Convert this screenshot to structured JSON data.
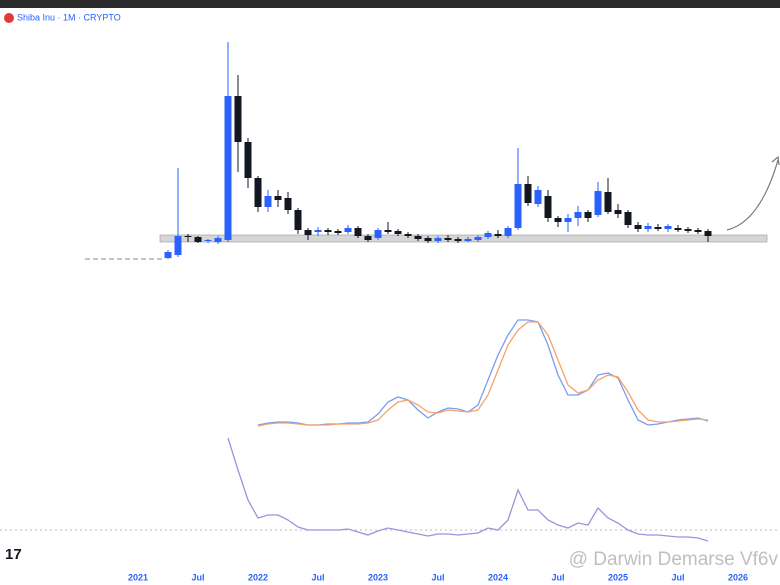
{
  "title": "Shiba Inu · 1M · CRYPTO",
  "watermark": "@ Darwin Demarse Vf6v",
  "chart_data": [
    {
      "type": "candlestick",
      "up_color": "#2962ff",
      "down_color": "#131722",
      "xlim": [
        -13.8,
        64.2
      ],
      "ylim": [
        0,
        220
      ],
      "xticks": [
        {
          "value": 0,
          "label": "2021"
        },
        {
          "value": 6,
          "label": "Jul"
        },
        {
          "value": 12,
          "label": "2022"
        },
        {
          "value": 18,
          "label": "Jul"
        },
        {
          "value": 24,
          "label": "2023"
        },
        {
          "value": 30,
          "label": "Jul"
        },
        {
          "value": 36,
          "label": "2024"
        },
        {
          "value": 42,
          "label": "Jul"
        },
        {
          "value": 48,
          "label": "2025"
        },
        {
          "value": 54,
          "label": "Jul"
        },
        {
          "value": 60,
          "label": "2026"
        }
      ],
      "x": [
        3,
        4,
        5,
        6,
        7,
        8,
        9,
        10,
        11,
        12,
        13,
        14,
        15,
        16,
        17,
        18,
        19,
        20,
        21,
        22,
        23,
        24,
        25,
        26,
        27,
        28,
        29,
        30,
        31,
        32,
        33,
        34,
        35,
        36,
        37,
        38,
        39,
        40,
        41,
        42,
        43,
        44,
        45,
        46,
        47,
        48,
        49,
        50,
        51,
        52,
        53,
        54,
        55,
        56,
        57
      ],
      "open": [
        4,
        7,
        26,
        25,
        21,
        20,
        22,
        166,
        120,
        84,
        55,
        66,
        64,
        52,
        32,
        30,
        32,
        31,
        30,
        34,
        26,
        24,
        32,
        31,
        28,
        26,
        24,
        21,
        24,
        23,
        21,
        22,
        25,
        28,
        26,
        34,
        78,
        58,
        66,
        44,
        40,
        44,
        50,
        47,
        70,
        52,
        50,
        37,
        33,
        35,
        33,
        34,
        33,
        32,
        31
      ],
      "high": [
        12,
        94,
        28,
        26,
        23,
        26,
        220,
        187,
        124,
        86,
        72,
        72,
        70,
        54,
        34,
        35,
        34,
        33,
        37,
        36,
        28,
        34,
        40,
        33,
        30,
        28,
        26,
        26,
        27,
        25,
        25,
        27,
        31,
        32,
        36,
        114,
        86,
        76,
        72,
        46,
        48,
        56,
        52,
        80,
        84,
        58,
        52,
        40,
        39,
        38,
        38,
        37,
        35,
        34,
        33
      ],
      "low": [
        3,
        5,
        20,
        19,
        19,
        18,
        20,
        90,
        74,
        50,
        50,
        55,
        48,
        28,
        22,
        26,
        27,
        27,
        28,
        24,
        20,
        22,
        28,
        26,
        24,
        21,
        19,
        19,
        20,
        19,
        20,
        20,
        23,
        24,
        24,
        32,
        56,
        55,
        40,
        35,
        30,
        36,
        40,
        45,
        48,
        44,
        34,
        30,
        30,
        31,
        30,
        30,
        29,
        28,
        20
      ],
      "close": [
        10,
        26,
        25,
        20,
        22,
        24,
        166,
        120,
        84,
        55,
        66,
        62,
        52,
        32,
        27,
        32,
        30,
        29,
        34,
        26,
        22,
        32,
        30,
        28,
        26,
        23,
        21,
        24,
        22,
        21,
        23,
        25,
        29,
        26,
        34,
        78,
        59,
        72,
        44,
        40,
        44,
        50,
        44,
        71,
        50,
        48,
        37,
        33,
        36,
        33,
        36,
        32,
        31,
        30,
        26
      ]
    },
    {
      "type": "line",
      "xlim": [
        -13.8,
        64.2
      ],
      "ylim": [
        0,
        130
      ],
      "x": [
        12,
        13,
        14,
        15,
        16,
        17,
        18,
        19,
        20,
        21,
        22,
        23,
        24,
        25,
        26,
        27,
        28,
        29,
        30,
        31,
        32,
        33,
        34,
        35,
        36,
        37,
        38,
        39,
        40,
        41,
        42,
        43,
        44,
        45,
        46,
        47,
        48,
        49,
        50,
        51,
        52,
        53,
        54,
        55,
        56,
        57
      ],
      "series": [
        {
          "color": "#7b9cf0",
          "values": [
            5,
            7,
            8,
            8,
            7,
            5,
            5,
            6,
            6,
            7,
            7,
            8,
            16,
            28,
            33,
            30,
            20,
            12,
            18,
            22,
            21,
            18,
            25,
            50,
            75,
            95,
            110,
            110,
            108,
            85,
            55,
            35,
            35,
            40,
            55,
            57,
            52,
            30,
            10,
            5,
            6,
            8,
            10,
            11,
            12,
            9
          ]
        },
        {
          "color": "#f4a36b",
          "values": [
            4,
            6,
            7,
            7,
            6,
            5,
            5,
            5,
            6,
            6,
            6,
            7,
            10,
            20,
            28,
            30,
            25,
            18,
            17,
            20,
            19,
            18,
            20,
            35,
            60,
            85,
            100,
            108,
            108,
            95,
            70,
            45,
            37,
            40,
            50,
            55,
            53,
            38,
            20,
            10,
            8,
            8,
            9,
            10,
            11,
            10
          ]
        }
      ]
    },
    {
      "type": "line",
      "xlim": [
        -13.8,
        64.2
      ],
      "ylim": [
        0,
        105
      ],
      "x": [
        9,
        10,
        11,
        12,
        13,
        14,
        15,
        16,
        17,
        18,
        19,
        20,
        21,
        22,
        23,
        24,
        25,
        26,
        27,
        28,
        29,
        30,
        31,
        32,
        33,
        34,
        35,
        36,
        37,
        38,
        39,
        40,
        41,
        42,
        43,
        44,
        45,
        46,
        47,
        48,
        49,
        50,
        51,
        52,
        53,
        54,
        55,
        56,
        57
      ],
      "series": [
        {
          "color": "#9a94dc",
          "values": [
            107,
            75,
            45,
            27,
            30,
            30,
            25,
            18,
            15,
            15,
            15,
            15,
            16,
            13,
            10,
            14,
            17,
            15,
            13,
            11,
            9,
            11,
            11,
            10,
            11,
            12,
            17,
            15,
            25,
            55,
            35,
            35,
            25,
            20,
            17,
            22,
            20,
            37,
            27,
            22,
            15,
            11,
            10,
            10,
            9,
            8,
            8,
            7,
            4
          ]
        }
      ]
    }
  ]
}
